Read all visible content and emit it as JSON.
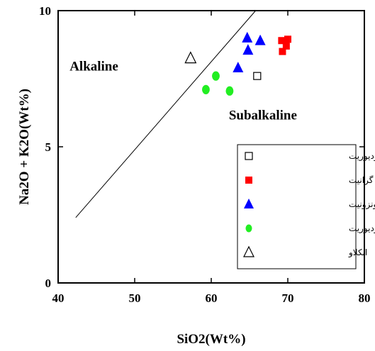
{
  "chart_data": {
    "type": "scatter",
    "xlabel": "SiO2(Wt%)",
    "ylabel": "Na2O + K2O(Wt%)",
    "xlim": [
      40,
      80
    ],
    "ylim": [
      0,
      10
    ],
    "x_ticks": [
      "40",
      "50",
      "60",
      "70",
      "80"
    ],
    "y_ticks": [
      "0",
      "5",
      "10"
    ],
    "grid": false,
    "legend_position": "lower-right",
    "boundary_line": {
      "x": [
        42.3,
        65.8
      ],
      "y": [
        2.4,
        10
      ]
    },
    "field_labels": [
      {
        "text": "Alkaline",
        "x": 41.5,
        "y": 7.8
      },
      {
        "text": "Subalkaline",
        "x": 62.3,
        "y": 6.0
      }
    ],
    "series": [
      {
        "name": "کوارتزمونزودیوریت",
        "marker": "open-square",
        "color": "#000000",
        "points": [
          {
            "x": 66.0,
            "y": 7.6
          }
        ]
      },
      {
        "name": "گرانیت",
        "marker": "filled-square",
        "color": "#ff0000",
        "points": [
          {
            "x": 69.2,
            "y": 8.9
          },
          {
            "x": 70.0,
            "y": 8.95
          },
          {
            "x": 69.8,
            "y": 8.7
          },
          {
            "x": 69.3,
            "y": 8.5
          }
        ]
      },
      {
        "name": "کوارتزمونزونیت",
        "marker": "filled-triangle",
        "color": "#0000ff",
        "points": [
          {
            "x": 64.7,
            "y": 9.0
          },
          {
            "x": 66.4,
            "y": 8.9
          },
          {
            "x": 64.8,
            "y": 8.55
          },
          {
            "x": 63.5,
            "y": 7.9
          }
        ]
      },
      {
        "name": "مونزودیوریت",
        "marker": "filled-circle",
        "color": "#22ee22",
        "points": [
          {
            "x": 60.6,
            "y": 7.6
          },
          {
            "x": 59.3,
            "y": 7.1
          },
          {
            "x": 62.4,
            "y": 7.05
          }
        ]
      },
      {
        "name": "انکلاو",
        "marker": "open-triangle",
        "color": "#000000",
        "points": [
          {
            "x": 57.3,
            "y": 8.25
          }
        ]
      }
    ]
  }
}
